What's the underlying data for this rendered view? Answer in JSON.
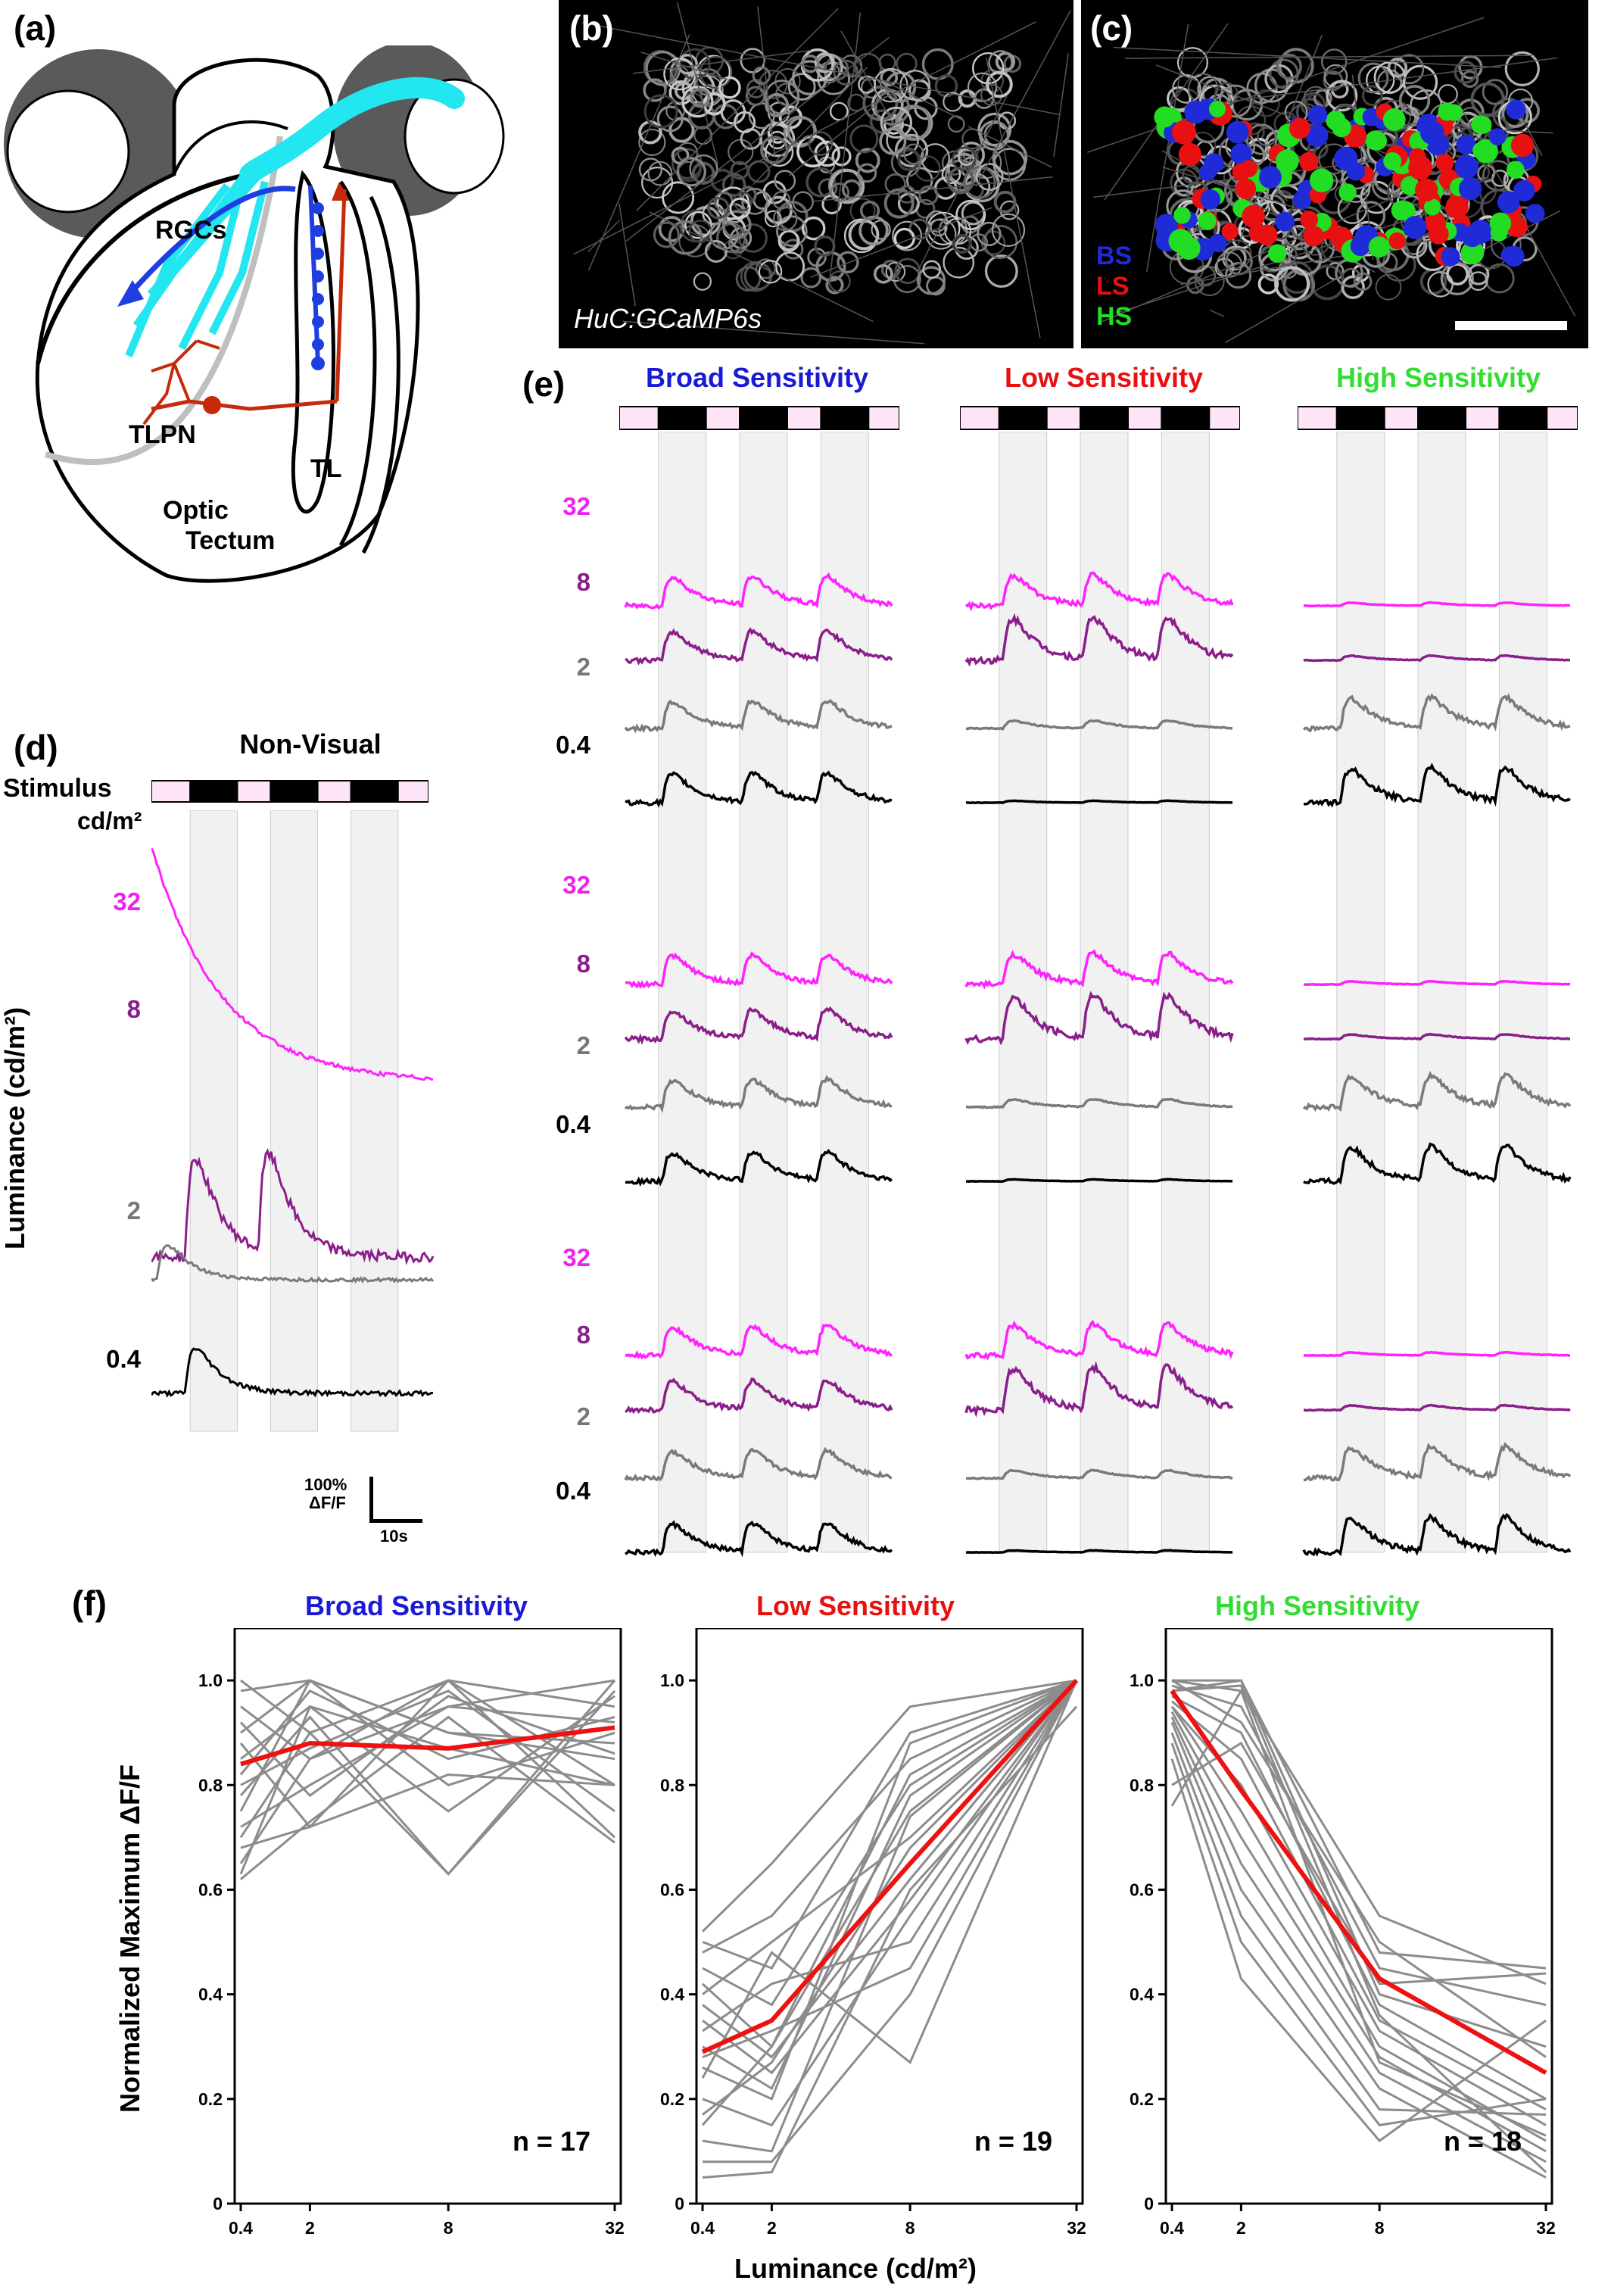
{
  "panel_letters": [
    "(a)",
    "(b)",
    "(c)",
    "(d)",
    "(e)",
    "(f)"
  ],
  "panel_a": {
    "labels": [
      "RGCs",
      "TLPN",
      "TL",
      "Optic",
      "Tectum"
    ]
  },
  "panel_b": {
    "caption": "HuC:GCaMP6s"
  },
  "panel_c": {
    "legend": [
      {
        "abbr": "BS",
        "color": "#1f2bd6"
      },
      {
        "abbr": "LS",
        "color": "#e81010"
      },
      {
        "abbr": "HS",
        "color": "#22dd22"
      }
    ]
  },
  "panel_d": {
    "title": "Non-Visual",
    "stimulus_label": "Stimulus",
    "unit_label": "cd/m²",
    "axis_label": "Luminance (cd/m²)",
    "luminances": [
      "32",
      "8",
      "2",
      "0.4"
    ],
    "scale_bar": {
      "y": "100%",
      "y2": "ΔF/F",
      "x": "10s"
    }
  },
  "panel_e": {
    "groups": [
      {
        "title": "Broad Sensitivity",
        "color": "#1a1ad6"
      },
      {
        "title": "Low Sensitivity",
        "color": "#e81010"
      },
      {
        "title": "High Sensitivity",
        "color": "#33dd33"
      }
    ],
    "luminances": [
      "32",
      "8",
      "2",
      "0.4"
    ],
    "trace_colors": {
      "32": "#ff22ff",
      "8": "#8a1e8a",
      "2": "#7a7a7a",
      "0.4": "#000000"
    }
  },
  "chart_data": [
    {
      "type": "line",
      "title": "Broad Sensitivity",
      "x": [
        "0.4",
        "2",
        "8",
        "32"
      ],
      "xlabel": "Luminance (cd/m²)",
      "ylabel": "Normalized Maximum ΔF/F",
      "ylim": [
        0,
        1.1
      ],
      "yticks": [
        "0",
        "0.2",
        "0.4",
        "0.6",
        "0.8",
        "1.0"
      ],
      "annotation": "n = 17",
      "series": [
        {
          "values": [
            0.84,
            0.88,
            0.87,
            0.91
          ],
          "color": "#ee1111",
          "mean": true
        },
        {
          "values": [
            1.0,
            0.9,
            1.0,
            0.95
          ]
        },
        {
          "values": [
            0.98,
            1.0,
            0.8,
            0.9
          ]
        },
        {
          "values": [
            0.95,
            0.85,
            0.95,
            1.0
          ]
        },
        {
          "values": [
            0.9,
            1.0,
            0.9,
            0.85
          ]
        },
        {
          "values": [
            0.88,
            0.72,
            1.0,
            0.8
          ]
        },
        {
          "values": [
            0.85,
            0.95,
            0.75,
            0.97
          ]
        },
        {
          "values": [
            0.82,
            0.98,
            0.85,
            0.93
          ]
        },
        {
          "values": [
            0.8,
            0.87,
            0.98,
            0.75
          ]
        },
        {
          "values": [
            0.78,
            0.93,
            0.63,
            0.98
          ]
        },
        {
          "values": [
            0.75,
            1.0,
            0.9,
            0.88
          ]
        },
        {
          "values": [
            0.72,
            0.8,
            0.95,
            0.92
          ]
        },
        {
          "values": [
            0.7,
            0.9,
            0.63,
            1.0
          ]
        },
        {
          "values": [
            0.68,
            0.72,
            0.82,
            0.8
          ]
        },
        {
          "values": [
            0.65,
            0.85,
            1.0,
            0.7
          ]
        },
        {
          "values": [
            0.63,
            0.95,
            0.87,
            0.8
          ]
        },
        {
          "values": [
            0.62,
            0.73,
            0.93,
            0.69
          ]
        },
        {
          "values": [
            0.92,
            0.78,
            0.97,
            0.86
          ]
        }
      ]
    },
    {
      "type": "line",
      "title": "Low Sensitivity",
      "x": [
        "0.4",
        "2",
        "8",
        "32"
      ],
      "xlabel": "Luminance (cd/m²)",
      "ylabel": "Normalized Maximum ΔF/F",
      "ylim": [
        0,
        1.1
      ],
      "yticks": [
        "0",
        "0.2",
        "0.4",
        "0.6",
        "0.8",
        "1.0"
      ],
      "annotation": "n = 19",
      "series": [
        {
          "values": [
            0.29,
            0.35,
            0.65,
            1.0
          ],
          "color": "#ee1111",
          "mean": true
        },
        {
          "values": [
            0.52,
            0.65,
            0.95,
            1.0
          ]
        },
        {
          "values": [
            0.5,
            0.45,
            0.9,
            1.0
          ]
        },
        {
          "values": [
            0.48,
            0.55,
            0.85,
            1.0
          ]
        },
        {
          "values": [
            0.45,
            0.38,
            0.8,
            1.0
          ]
        },
        {
          "values": [
            0.42,
            0.3,
            0.75,
            1.0
          ]
        },
        {
          "values": [
            0.4,
            0.5,
            0.7,
            1.0
          ]
        },
        {
          "values": [
            0.38,
            0.28,
            0.62,
            1.0
          ]
        },
        {
          "values": [
            0.35,
            0.25,
            0.58,
            1.0
          ]
        },
        {
          "values": [
            0.33,
            0.42,
            0.5,
            1.0
          ]
        },
        {
          "values": [
            0.3,
            0.22,
            0.78,
            1.0
          ]
        },
        {
          "values": [
            0.28,
            0.33,
            0.45,
            1.0
          ]
        },
        {
          "values": [
            0.26,
            0.2,
            0.88,
            1.0
          ]
        },
        {
          "values": [
            0.24,
            0.48,
            0.27,
            1.0
          ]
        },
        {
          "values": [
            0.2,
            0.15,
            0.55,
            1.0
          ]
        },
        {
          "values": [
            0.17,
            0.27,
            0.68,
            1.0
          ]
        },
        {
          "values": [
            0.12,
            0.1,
            0.74,
            1.0
          ]
        },
        {
          "values": [
            0.08,
            0.08,
            0.4,
            1.0
          ]
        },
        {
          "values": [
            0.05,
            0.06,
            0.6,
            0.95
          ]
        },
        {
          "values": [
            0.15,
            0.3,
            0.82,
            1.0
          ]
        }
      ]
    },
    {
      "type": "line",
      "title": "High Sensitivity",
      "x": [
        "0.4",
        "2",
        "8",
        "32"
      ],
      "xlabel": "Luminance (cd/m²)",
      "ylabel": "Normalized Maximum ΔF/F",
      "ylim": [
        0,
        1.1
      ],
      "yticks": [
        "0",
        "0.2",
        "0.4",
        "0.6",
        "0.8",
        "1.0"
      ],
      "annotation": "n = 18",
      "series": [
        {
          "values": [
            0.98,
            0.79,
            0.43,
            0.25
          ],
          "color": "#ee1111",
          "mean": true
        },
        {
          "values": [
            1.0,
            1.0,
            0.48,
            0.45
          ]
        },
        {
          "values": [
            1.0,
            0.98,
            0.55,
            0.42
          ]
        },
        {
          "values": [
            0.99,
            0.95,
            0.45,
            0.38
          ]
        },
        {
          "values": [
            0.98,
            1.0,
            0.4,
            0.3
          ]
        },
        {
          "values": [
            0.97,
            0.9,
            0.38,
            0.2
          ]
        },
        {
          "values": [
            0.96,
            0.85,
            0.35,
            0.18
          ]
        },
        {
          "values": [
            0.95,
            0.8,
            0.33,
            0.15
          ]
        },
        {
          "values": [
            0.95,
            0.75,
            0.3,
            0.12
          ]
        },
        {
          "values": [
            0.94,
            0.7,
            0.28,
            0.1
          ]
        },
        {
          "values": [
            0.93,
            0.65,
            0.25,
            0.08
          ]
        },
        {
          "values": [
            0.92,
            0.6,
            0.22,
            0.05
          ]
        },
        {
          "values": [
            0.9,
            0.55,
            0.18,
            0.17
          ]
        },
        {
          "values": [
            0.88,
            0.5,
            0.15,
            0.2
          ]
        },
        {
          "values": [
            0.85,
            0.43,
            0.12,
            0.35
          ]
        },
        {
          "values": [
            0.8,
            0.88,
            0.42,
            0.44
          ]
        },
        {
          "values": [
            0.76,
            0.98,
            0.27,
            0.13
          ]
        },
        {
          "values": [
            1.0,
            0.92,
            0.5,
            0.28
          ]
        },
        {
          "values": [
            0.98,
            0.99,
            0.36,
            0.06
          ]
        }
      ]
    }
  ]
}
